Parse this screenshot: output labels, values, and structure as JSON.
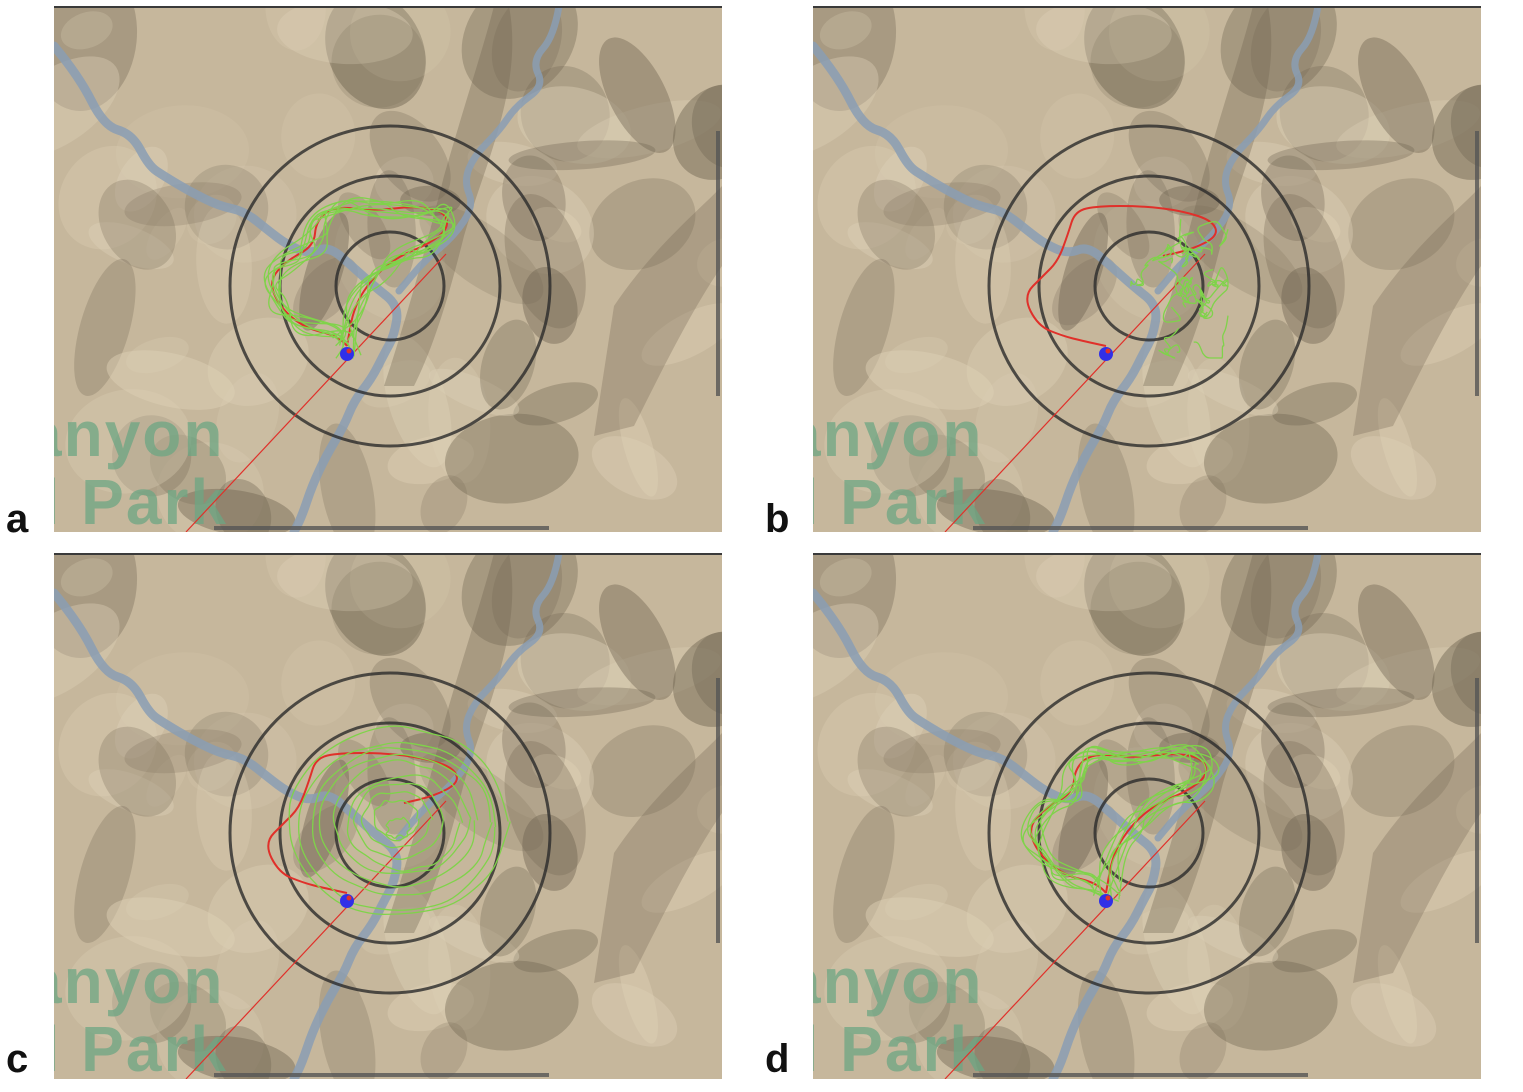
{
  "figure": {
    "panels": [
      {
        "id": "a",
        "label": "a",
        "behavior": "wandering-loop"
      },
      {
        "id": "b",
        "label": "b",
        "behavior": "clustered-tangle"
      },
      {
        "id": "c",
        "label": "c",
        "behavior": "spiral-orbit"
      },
      {
        "id": "d",
        "label": "d",
        "behavior": "crescent-loop"
      }
    ],
    "map_text": {
      "line1": "anyon",
      "line2": "al Park"
    }
  },
  "colors": {
    "terrain": "#c6b79c",
    "shadow": "#6f6451",
    "river": "#8a9db4",
    "range_rings": "#2b2b2b",
    "reference_path": "#e0302a",
    "agent_tracks": "#7fd34a",
    "base_marker": "#3030e8",
    "park_text": "#6ca583"
  }
}
